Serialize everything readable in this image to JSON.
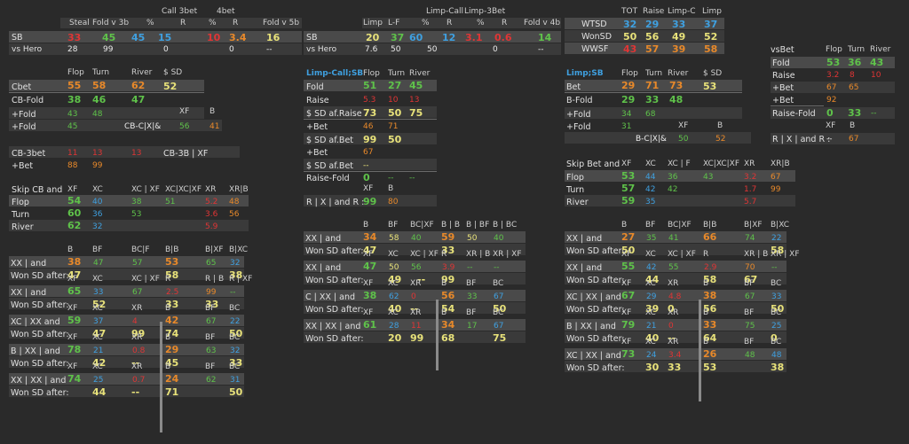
{
  "p1": {
    "labels": [
      "SB",
      "vs Hero"
    ],
    "top": [
      "Call 3bet",
      "4bet"
    ],
    "hdr": [
      "Steal",
      "Fold v 3b",
      "%",
      "R",
      "%",
      "R",
      "Fold v 5b"
    ],
    "sb": [
      "33",
      "45",
      "45",
      "15",
      "10",
      "3.4",
      "16"
    ],
    "hero": [
      "28",
      "99",
      "0",
      "0",
      "--"
    ]
  },
  "p2": {
    "top": [
      "Limp-Call",
      "Limp-3Bet"
    ],
    "hdr": [
      "Limp",
      "L-F",
      "%",
      "R",
      "%",
      "R",
      "Fold v 4b"
    ],
    "label_sb": "SB",
    "label_hero": "vs Hero",
    "sb": [
      "20",
      "37",
      "60",
      "12",
      "3.1",
      "0.6",
      "14"
    ],
    "hero": [
      "7.6",
      "50",
      "50",
      "0",
      "--"
    ]
  },
  "p3": {
    "hdr": [
      "TOT",
      "Raise",
      "Limp-C",
      "Limp"
    ],
    "rows": [
      {
        "l": "WTSD",
        "v": [
          "32",
          "29",
          "33",
          "37"
        ]
      },
      {
        "l": "WonSD",
        "v": [
          "50",
          "56",
          "49",
          "52"
        ]
      },
      {
        "l": "WWSF",
        "v": [
          "43",
          "57",
          "39",
          "58"
        ]
      }
    ]
  },
  "vsbet": {
    "hdr": [
      "vsBet",
      "Flop",
      "Turn",
      "River"
    ],
    "fold": [
      "Fold",
      "53",
      "36",
      "43"
    ],
    "raise": [
      "Raise",
      "3.2",
      "8",
      "10"
    ],
    "pbet": [
      "+Bet",
      "67",
      "65"
    ],
    "pbet2": [
      "+Bet",
      "92"
    ],
    "rf": [
      "Raise-Fold",
      "0",
      "33",
      "--"
    ],
    "hdr2": [
      "XF",
      "B"
    ],
    "rx": [
      "R | X | and R :",
      "--",
      "67"
    ]
  },
  "cbet": {
    "hdr": [
      "Flop",
      "Turn",
      "River",
      "$ SD"
    ],
    "cbet": [
      "Cbet",
      "55",
      "58",
      "62",
      "52"
    ],
    "cbf": [
      "CB-Fold",
      "38",
      "46",
      "47"
    ],
    "pf": [
      "+Fold",
      "43",
      "48"
    ],
    "xfb": [
      "XF",
      "B"
    ],
    "pf2": [
      "+Fold",
      "45",
      "CB-C|X|&",
      "56",
      "41"
    ],
    "cb3": [
      "CB-3bet",
      "11",
      "13",
      "13",
      "CB-3B | XF"
    ],
    "pb": [
      "+Bet",
      "88",
      "99"
    ],
    "skhdr": [
      "Skip CB and",
      "XF",
      "XC",
      "XC | XF",
      "XC|XC|XF",
      "XR",
      "XR|B"
    ],
    "skflop": [
      "Flop",
      "54",
      "40",
      "38",
      "51",
      "5.2",
      "48"
    ],
    "skturn": [
      "Turn",
      "60",
      "36",
      "53",
      "3.6",
      "56"
    ],
    "skriver": [
      "River",
      "62",
      "32",
      "5.9"
    ]
  },
  "bl1": {
    "blocks": [
      {
        "h": [
          "B",
          "BF",
          "BC|F",
          "B|B",
          "B|XF",
          "B|XC"
        ],
        "l1": "XX | and",
        "v1": [
          "38",
          "47",
          "57",
          "53",
          "65",
          "32"
        ],
        "l2": "Won SD after:",
        "v2": [
          "47",
          "58",
          "38"
        ]
      },
      {
        "h": [
          "XF",
          "XC",
          "XC | XF",
          "R",
          "R | B",
          "R | XF"
        ],
        "l1": "XX | and",
        "v1": [
          "65",
          "33",
          "67",
          "2.5",
          "99",
          "--"
        ],
        "l2": "Won SD after:",
        "v2": [
          "52",
          "33",
          "33"
        ]
      },
      {
        "h": [
          "XF",
          "XC",
          "XR",
          "B",
          "BF",
          "BC"
        ],
        "l1": "XC | XX and",
        "v1": [
          "59",
          "37",
          "4",
          "42",
          "67",
          "22"
        ],
        "l2": "Won SD after:",
        "v2": [
          "47",
          "99",
          "74",
          "50"
        ]
      },
      {
        "h": [
          "XF",
          "XC",
          "XR",
          "B",
          "BF",
          "BC"
        ],
        "l1": "B | XX | and",
        "v1": [
          "78",
          "21",
          "0.8",
          "29",
          "63",
          "32"
        ],
        "l2": "Won SD after:",
        "v2": [
          "42",
          "--",
          "45",
          "33"
        ]
      },
      {
        "h": [
          "XF",
          "XC",
          "XR",
          "B",
          "BF",
          "BC"
        ],
        "l1": "XX | XX | and",
        "v1": [
          "74",
          "25",
          "0.7",
          "24",
          "62",
          "31"
        ],
        "l2": "Won SD after:",
        "v2": [
          "44",
          "--",
          "71",
          "50"
        ]
      }
    ]
  },
  "lc": {
    "title": "Limp-Call;SB",
    "hdr": [
      "Flop",
      "Turn",
      "River"
    ],
    "fold": [
      "Fold",
      "51",
      "27",
      "45"
    ],
    "raise": [
      "Raise",
      "5.3",
      "10",
      "13"
    ],
    "sdr": [
      "$ SD af.Raise",
      "73",
      "50",
      "75"
    ],
    "pbet": [
      "+Bet",
      "46",
      "71"
    ],
    "sdb": [
      "$ SD af.Bet",
      "99",
      "50"
    ],
    "pbet2": [
      "+Bet",
      "67"
    ],
    "sdb2": [
      "$ SD af.Bet",
      "--"
    ],
    "rf": [
      "Raise-Fold",
      "0",
      "--",
      "--"
    ],
    "hdr2": [
      "XF",
      "B"
    ],
    "rx": [
      "R | X | and R :",
      "99",
      "80"
    ]
  },
  "bl2": {
    "blocks": [
      {
        "h": [
          "B",
          "BF",
          "BC|XF",
          "B | B",
          "B | BF",
          "B | BC"
        ],
        "l1": "XX | and",
        "v1": [
          "34",
          "58",
          "40",
          "59",
          "50",
          "40"
        ],
        "l2": "Won SD after:",
        "v2": [
          "47",
          "33"
        ]
      },
      {
        "h": [
          "XF",
          "XC",
          "XC | XF",
          "R",
          "XR | B",
          "XR | XF"
        ],
        "l1": "XX | and",
        "v1": [
          "47",
          "50",
          "56",
          "3.9",
          "--",
          "--"
        ],
        "l2": "Won SD after:",
        "v2": [
          "49",
          "--",
          "99"
        ]
      },
      {
        "h": [
          "XF",
          "XC",
          "XR",
          "B",
          "BF",
          "BC"
        ],
        "l1": "C | XX | and",
        "v1": [
          "38",
          "62",
          "0",
          "56",
          "33",
          "67"
        ],
        "l2": "Won SD after:",
        "v2": [
          "40",
          "--",
          "54",
          "50"
        ]
      },
      {
        "h": [
          "XF",
          "XC",
          "XR",
          "B",
          "BF",
          "BC"
        ],
        "l1": "XX | XX | and",
        "v1": [
          "61",
          "28",
          "11",
          "34",
          "17",
          "67"
        ],
        "l2": "Won SD after:",
        "v2": [
          "20",
          "99",
          "68",
          "75"
        ]
      }
    ]
  },
  "lsb": {
    "title": "Limp;SB",
    "hdr": [
      "Flop",
      "Turn",
      "River",
      "$ SD"
    ],
    "bet": [
      "Bet",
      "29",
      "71",
      "73",
      "53"
    ],
    "bfold": [
      "B-Fold",
      "29",
      "33",
      "48"
    ],
    "pf": [
      "+Fold",
      "34",
      "68"
    ],
    "xfb": [
      "XF",
      "B"
    ],
    "pf2": [
      "+Fold",
      "31",
      "B-C|X|&",
      "50",
      "52"
    ],
    "skhdr": [
      "Skip Bet and",
      "XF",
      "XC",
      "XC | F",
      "XC|XC|XF",
      "XR",
      "XR|B"
    ],
    "skflop": [
      "Flop",
      "53",
      "44",
      "36",
      "43",
      "3.2",
      "67"
    ],
    "skturn": [
      "Turn",
      "57",
      "42",
      "42",
      "1.7",
      "99"
    ],
    "skriver": [
      "River",
      "59",
      "35",
      "5.7"
    ]
  },
  "bl3": {
    "blocks": [
      {
        "h": [
          "B",
          "BF",
          "BC|XF",
          "B|B",
          "B|XF",
          "B|XC"
        ],
        "l1": "XX | and",
        "v1": [
          "27",
          "35",
          "41",
          "66",
          "74",
          "22"
        ],
        "l2": "Won SD after:",
        "v2": [
          "50",
          "58"
        ]
      },
      {
        "h": [
          "XF",
          "XC",
          "XC | XF",
          "R",
          "XR | B",
          "XR | XF"
        ],
        "l1": "XX | and",
        "v1": [
          "55",
          "42",
          "55",
          "2.9",
          "70",
          "--"
        ],
        "l2": "Won SD after:",
        "v2": [
          "44",
          "58",
          "67"
        ]
      },
      {
        "h": [
          "XF",
          "XC",
          "XR",
          "B",
          "BF",
          "BC"
        ],
        "l1": "XC | XX | and",
        "v1": [
          "67",
          "29",
          "4.8",
          "38",
          "67",
          "33"
        ],
        "l2": "Won SD after:",
        "v2": [
          "39",
          "0",
          "56",
          "50"
        ]
      },
      {
        "h": [
          "XF",
          "XC",
          "XR",
          "B",
          "BF",
          "BC"
        ],
        "l1": "B | XX | and",
        "v1": [
          "79",
          "21",
          "0",
          "33",
          "75",
          "25"
        ],
        "l2": "Won SD after:",
        "v2": [
          "40",
          "--",
          "64",
          "0"
        ]
      },
      {
        "h": [
          "XF",
          "XC",
          "XR",
          "B",
          "BF",
          "BC"
        ],
        "l1": "XC | XX | and",
        "v1": [
          "73",
          "24",
          "3.4",
          "26",
          "48",
          "48"
        ],
        "l2": "Won SD after:",
        "v2": [
          "30",
          "33",
          "53",
          "38"
        ]
      }
    ]
  }
}
